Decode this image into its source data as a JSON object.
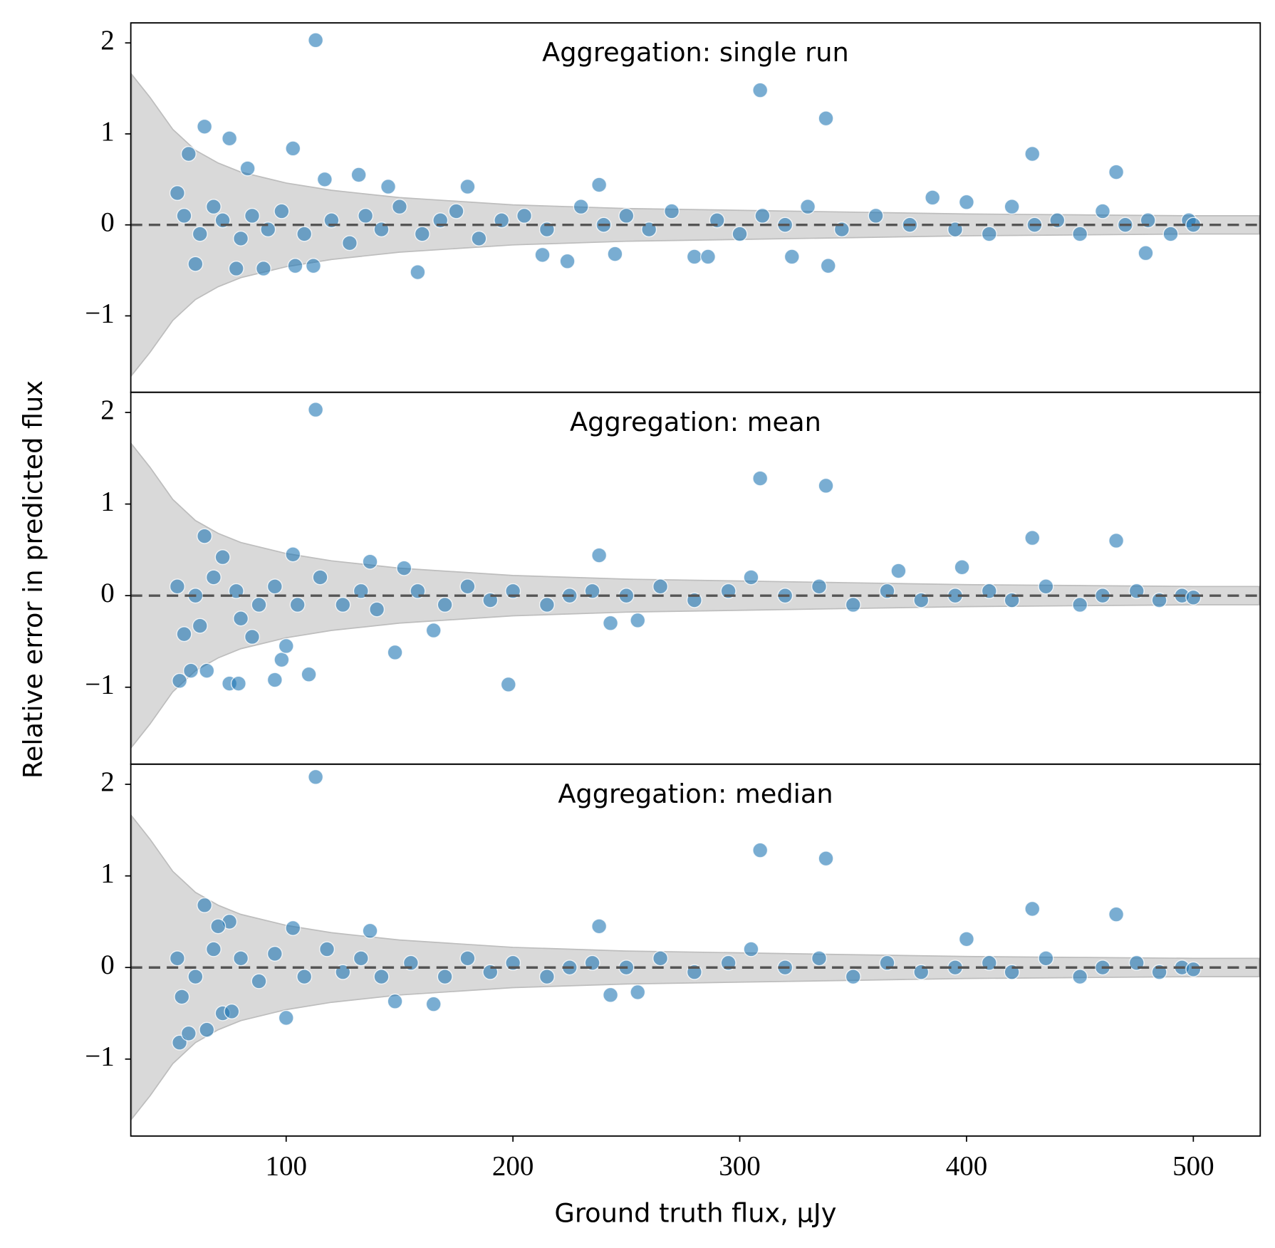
{
  "chart_data": [
    {
      "type": "scatter",
      "title": "Aggregation: single run",
      "color": "#1f77b4",
      "x": [
        113,
        309,
        338,
        429,
        466,
        64,
        75,
        103,
        57,
        83,
        117,
        132,
        238,
        145,
        180,
        52,
        60,
        78,
        90,
        104,
        112,
        158,
        213,
        224,
        245,
        280,
        286,
        323,
        339,
        479,
        55,
        62,
        68,
        72,
        80,
        85,
        92,
        98,
        108,
        120,
        128,
        135,
        142,
        150,
        160,
        168,
        175,
        185,
        195,
        205,
        215,
        230,
        240,
        250,
        260,
        270,
        290,
        300,
        310,
        320,
        330,
        345,
        360,
        375,
        385,
        395,
        400,
        410,
        420,
        430,
        440,
        450,
        460,
        470,
        480,
        490,
        498,
        500
      ],
      "values": [
        2.03,
        1.48,
        1.17,
        0.78,
        0.58,
        1.08,
        0.95,
        0.84,
        0.78,
        0.62,
        0.5,
        0.55,
        0.44,
        0.42,
        0.42,
        0.35,
        -0.43,
        -0.48,
        -0.48,
        -0.45,
        -0.45,
        -0.52,
        -0.33,
        -0.4,
        -0.32,
        -0.35,
        -0.35,
        -0.35,
        -0.45,
        -0.31,
        0.1,
        -0.1,
        0.2,
        0.05,
        -0.15,
        0.1,
        -0.05,
        0.15,
        -0.1,
        0.05,
        -0.2,
        0.1,
        -0.05,
        0.2,
        -0.1,
        0.05,
        0.15,
        -0.15,
        0.05,
        0.1,
        -0.05,
        0.2,
        0.0,
        0.1,
        -0.05,
        0.15,
        0.05,
        -0.1,
        0.1,
        0.0,
        0.2,
        -0.05,
        0.1,
        0.0,
        0.3,
        -0.05,
        0.25,
        -0.1,
        0.2,
        0.0,
        0.05,
        -0.1,
        0.15,
        0.0,
        0.05,
        -0.1,
        0.05,
        0.0
      ],
      "band_x": [
        32,
        40,
        50,
        60,
        70,
        80,
        100,
        120,
        150,
        200,
        250,
        300,
        350,
        400,
        450,
        500,
        529
      ],
      "band_upper": [
        1.65,
        1.4,
        1.05,
        0.82,
        0.68,
        0.58,
        0.46,
        0.38,
        0.3,
        0.22,
        0.18,
        0.16,
        0.14,
        0.12,
        0.11,
        0.1,
        0.1
      ],
      "band_lower": [
        -1.65,
        -1.4,
        -1.05,
        -0.82,
        -0.68,
        -0.58,
        -0.46,
        -0.38,
        -0.3,
        -0.22,
        -0.18,
        -0.16,
        -0.14,
        -0.12,
        -0.11,
        -0.1,
        -0.1
      ],
      "hline": 0,
      "xlim": [
        31.5,
        529.5
      ],
      "ylim": [
        -1.84,
        2.22
      ],
      "yticks": [
        {
          "value": -1,
          "label": "−1"
        },
        0,
        1,
        2
      ]
    },
    {
      "type": "scatter",
      "title": "Aggregation: mean",
      "color": "#1f77b4",
      "y_label": "Relative error in predicted flux",
      "x": [
        113,
        309,
        338,
        429,
        466,
        238,
        64,
        72,
        137,
        103,
        398,
        370,
        152,
        55,
        53,
        58,
        65,
        75,
        79,
        95,
        110,
        98,
        148,
        198,
        62,
        85,
        100,
        165,
        243,
        255,
        80,
        52,
        60,
        68,
        78,
        88,
        95,
        105,
        115,
        125,
        133,
        140,
        158,
        170,
        180,
        190,
        200,
        215,
        225,
        235,
        250,
        265,
        280,
        295,
        305,
        320,
        335,
        350,
        365,
        380,
        395,
        410,
        420,
        435,
        450,
        460,
        475,
        485,
        495,
        500
      ],
      "values": [
        2.03,
        1.28,
        1.2,
        0.63,
        0.6,
        0.44,
        0.65,
        0.42,
        0.37,
        0.45,
        0.31,
        0.27,
        0.3,
        -0.42,
        -0.93,
        -0.82,
        -0.82,
        -0.96,
        -0.96,
        -0.92,
        -0.86,
        -0.7,
        -0.62,
        -0.97,
        -0.33,
        -0.45,
        -0.55,
        -0.38,
        -0.3,
        -0.27,
        -0.25,
        0.1,
        0.0,
        0.2,
        0.05,
        -0.1,
        0.1,
        -0.1,
        0.2,
        -0.1,
        0.05,
        -0.15,
        0.05,
        -0.1,
        0.1,
        -0.05,
        0.05,
        -0.1,
        0.0,
        0.05,
        0.0,
        0.1,
        -0.05,
        0.05,
        0.2,
        0.0,
        0.1,
        -0.1,
        0.05,
        -0.05,
        0.0,
        0.05,
        -0.05,
        0.1,
        -0.1,
        0.0,
        0.05,
        -0.05,
        0.0,
        -0.02
      ],
      "band_x": [
        32,
        40,
        50,
        60,
        70,
        80,
        100,
        120,
        150,
        200,
        250,
        300,
        350,
        400,
        450,
        500,
        529
      ],
      "band_upper": [
        1.65,
        1.4,
        1.05,
        0.82,
        0.68,
        0.58,
        0.46,
        0.38,
        0.3,
        0.22,
        0.18,
        0.16,
        0.14,
        0.12,
        0.11,
        0.1,
        0.1
      ],
      "band_lower": [
        -1.65,
        -1.4,
        -1.05,
        -0.82,
        -0.68,
        -0.58,
        -0.46,
        -0.38,
        -0.3,
        -0.22,
        -0.18,
        -0.16,
        -0.14,
        -0.12,
        -0.11,
        -0.1,
        -0.1
      ],
      "hline": 0,
      "xlim": [
        31.5,
        529.5
      ],
      "ylim": [
        -1.84,
        2.22
      ],
      "yticks": [
        {
          "value": -1,
          "label": "−1"
        },
        0,
        1,
        2
      ]
    },
    {
      "type": "scatter",
      "title": "Aggregation: median",
      "color": "#1f77b4",
      "x_label": "Ground truth flux, μJy",
      "x": [
        113,
        309,
        338,
        429,
        466,
        238,
        64,
        137,
        103,
        400,
        53,
        57,
        65,
        72,
        76,
        54,
        100,
        148,
        165,
        243,
        255,
        75,
        70,
        52,
        60,
        68,
        80,
        88,
        95,
        108,
        118,
        125,
        133,
        142,
        155,
        170,
        180,
        190,
        200,
        215,
        225,
        235,
        250,
        265,
        280,
        295,
        305,
        320,
        335,
        350,
        365,
        380,
        395,
        410,
        420,
        435,
        450,
        460,
        475,
        485,
        495,
        500
      ],
      "values": [
        2.08,
        1.28,
        1.19,
        0.64,
        0.58,
        0.45,
        0.68,
        0.4,
        0.43,
        0.31,
        -0.82,
        -0.72,
        -0.68,
        -0.5,
        -0.48,
        -0.32,
        -0.55,
        -0.37,
        -0.4,
        -0.3,
        -0.27,
        0.5,
        0.45,
        0.1,
        -0.1,
        0.2,
        0.1,
        -0.15,
        0.15,
        -0.1,
        0.2,
        -0.05,
        0.1,
        -0.1,
        0.05,
        -0.1,
        0.1,
        -0.05,
        0.05,
        -0.1,
        0.0,
        0.05,
        0.0,
        0.1,
        -0.05,
        0.05,
        0.2,
        0.0,
        0.1,
        -0.1,
        0.05,
        -0.05,
        0.0,
        0.05,
        -0.05,
        0.1,
        -0.1,
        0.0,
        0.05,
        -0.05,
        0.0,
        -0.02
      ],
      "band_x": [
        32,
        40,
        50,
        60,
        70,
        80,
        100,
        120,
        150,
        200,
        250,
        300,
        350,
        400,
        450,
        500,
        529
      ],
      "band_upper": [
        1.65,
        1.4,
        1.05,
        0.82,
        0.68,
        0.58,
        0.46,
        0.38,
        0.3,
        0.22,
        0.18,
        0.16,
        0.14,
        0.12,
        0.11,
        0.1,
        0.1
      ],
      "band_lower": [
        -1.65,
        -1.4,
        -1.05,
        -0.82,
        -0.68,
        -0.58,
        -0.46,
        -0.38,
        -0.3,
        -0.22,
        -0.18,
        -0.16,
        -0.14,
        -0.12,
        -0.11,
        -0.1,
        -0.1
      ],
      "hline": 0,
      "xlim": [
        31.5,
        529.5
      ],
      "ylim": [
        -1.84,
        2.22
      ],
      "yticks": [
        {
          "value": -1,
          "label": "−1"
        },
        0,
        1,
        2
      ],
      "xticks": [
        100,
        200,
        300,
        400,
        500
      ]
    }
  ]
}
